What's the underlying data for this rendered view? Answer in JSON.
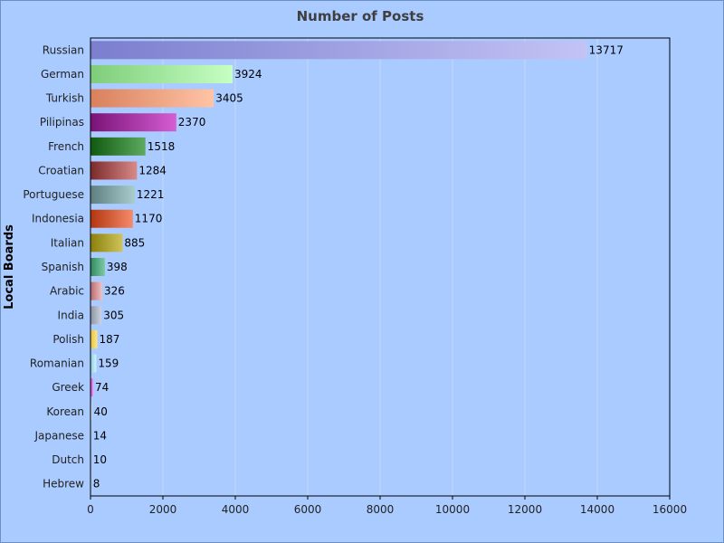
{
  "chart_data": {
    "type": "bar",
    "orientation": "horizontal",
    "title": "Number of Posts",
    "xlabel": "",
    "ylabel": "Local Boards",
    "xlim": [
      0,
      16000
    ],
    "xticks": [
      0,
      2000,
      4000,
      6000,
      8000,
      10000,
      12000,
      14000,
      16000
    ],
    "grid": true,
    "categories": [
      "Russian",
      "German",
      "Turkish",
      "Pilipinas",
      "French",
      "Croatian",
      "Portuguese",
      "Indonesia",
      "Italian",
      "Spanish",
      "Arabic",
      "India",
      "Polish",
      "Romanian",
      "Greek",
      "Korean",
      "Japanese",
      "Dutch",
      "Hebrew"
    ],
    "values": [
      13717,
      3924,
      3405,
      2370,
      1518,
      1284,
      1221,
      1170,
      885,
      398,
      326,
      305,
      187,
      159,
      74,
      40,
      14,
      10,
      8
    ],
    "value_labels": [
      "13717",
      "3924",
      "3405",
      "2370",
      "1518",
      "1284",
      "1221",
      "1170",
      "885",
      "398",
      "326",
      "305",
      "187",
      "159",
      "74",
      "40",
      "14",
      "10",
      "8"
    ],
    "colors": [
      [
        "#7b7ece",
        "#c4c3f5"
      ],
      [
        "#7ecd7a",
        "#c6ffc2"
      ],
      [
        "#d9805c",
        "#ffc4a6"
      ],
      [
        "#7a1276",
        "#d55ed2"
      ],
      [
        "#0f5a0f",
        "#5eaa60"
      ],
      [
        "#7a2a2a",
        "#d88a88"
      ],
      [
        "#5e7f80",
        "#a9cccc"
      ],
      [
        "#b2360f",
        "#f58a6a"
      ],
      [
        "#8a7f0a",
        "#cfc45a"
      ],
      [
        "#2e8a5e",
        "#7ec9a5"
      ],
      [
        "#b86a70",
        "#f0c2c4"
      ],
      [
        "#8a94a4",
        "#cdd3df"
      ],
      [
        "#e8c43a",
        "#ffe58a"
      ],
      [
        "#8ad0e8",
        "#d4f2fb"
      ],
      [
        "#c04ac0",
        "#ff8aff"
      ],
      [
        "#a9b8c8",
        "#e2eaf2"
      ],
      [
        "#8890a8",
        "#c8cede"
      ],
      [
        "#808080",
        "#c0c0c0"
      ],
      [
        "#8080a0",
        "#c0c0e0"
      ]
    ],
    "background": "#aacbff",
    "plot_background": "#aacbff"
  }
}
